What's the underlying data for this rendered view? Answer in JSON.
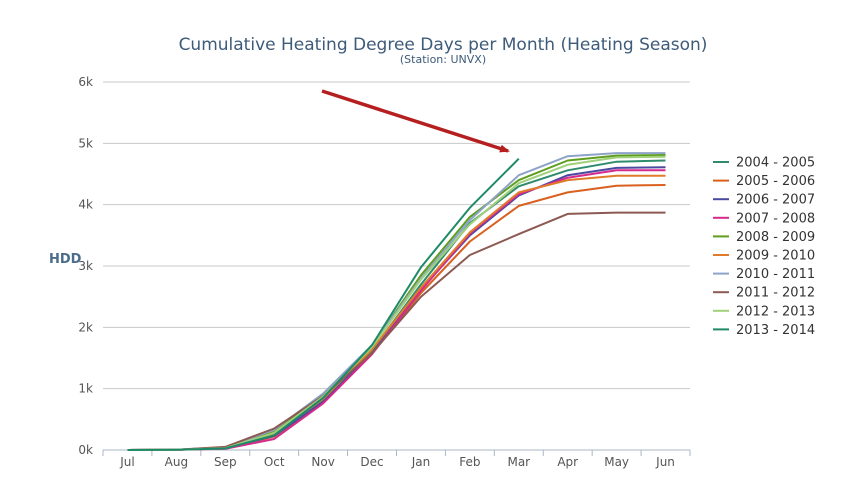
{
  "chart_data": {
    "type": "line",
    "title": "Cumulative Heating Degree Days per Month (Heating Season)",
    "subtitle": "(Station: UNVX)",
    "xlabel": "",
    "ylabel": "HDD",
    "categories": [
      "Jul",
      "Aug",
      "Sep",
      "Oct",
      "Nov",
      "Dec",
      "Jan",
      "Feb",
      "Mar",
      "Apr",
      "May",
      "Jun"
    ],
    "ylim": [
      0,
      6000
    ],
    "yticks": [
      {
        "value": 0,
        "label": "0k"
      },
      {
        "value": 1000,
        "label": "1k"
      },
      {
        "value": 2000,
        "label": "2k"
      },
      {
        "value": 3000,
        "label": "3k"
      },
      {
        "value": 4000,
        "label": "4k"
      },
      {
        "value": 5000,
        "label": "5k"
      },
      {
        "value": 6000,
        "label": "6k"
      }
    ],
    "grid": true,
    "legend_position": "right",
    "series": [
      {
        "name": "2004 - 2005",
        "color": "#2e8b6e",
        "values": [
          0,
          5,
          30,
          250,
          820,
          1620,
          2700,
          3700,
          4300,
          4560,
          4700,
          4720
        ]
      },
      {
        "name": "2005 - 2006",
        "color": "#d9601f",
        "values": [
          0,
          5,
          25,
          220,
          780,
          1570,
          2560,
          3400,
          3980,
          4200,
          4310,
          4320
        ]
      },
      {
        "name": "2006 - 2007",
        "color": "#4b4aa0",
        "values": [
          0,
          5,
          28,
          230,
          790,
          1580,
          2620,
          3500,
          4150,
          4480,
          4600,
          4610
        ]
      },
      {
        "name": "2007 - 2008",
        "color": "#d62a8c",
        "values": [
          0,
          5,
          20,
          180,
          760,
          1560,
          2600,
          3530,
          4170,
          4440,
          4560,
          4560
        ]
      },
      {
        "name": "2008 - 2009",
        "color": "#5e9e1e",
        "values": [
          0,
          5,
          40,
          300,
          900,
          1700,
          2850,
          3800,
          4400,
          4720,
          4800,
          4810
        ]
      },
      {
        "name": "2009 - 2010",
        "color": "#e07b2a",
        "values": [
          0,
          5,
          35,
          260,
          830,
          1640,
          2650,
          3550,
          4200,
          4400,
          4470,
          4470
        ]
      },
      {
        "name": "2010 - 2011",
        "color": "#8ea3c9",
        "values": [
          0,
          5,
          45,
          330,
          920,
          1710,
          2800,
          3750,
          4480,
          4790,
          4840,
          4840
        ]
      },
      {
        "name": "2011 - 2012",
        "color": "#8c5a52",
        "values": [
          0,
          5,
          50,
          350,
          880,
          1580,
          2500,
          3180,
          3520,
          3850,
          3870,
          3870
        ]
      },
      {
        "name": "2012 - 2013",
        "color": "#9fd07a",
        "values": [
          0,
          5,
          30,
          280,
          870,
          1680,
          2780,
          3680,
          4350,
          4650,
          4770,
          4780
        ]
      },
      {
        "name": "2013 - 2014",
        "color": "#1e8a68",
        "values": [
          0,
          5,
          25,
          240,
          850,
          1710,
          2980,
          3950,
          4750,
          null,
          null,
          null
        ]
      }
    ]
  }
}
